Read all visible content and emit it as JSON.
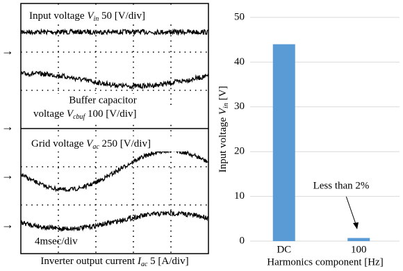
{
  "oscilloscope": {
    "input_voltage": {
      "pre": "Input voltage ",
      "var": "V",
      "sub": "in",
      "post": " 50 [V/div]"
    },
    "buffer_line1": "Buffer capacitor",
    "buffer_voltage": {
      "pre": "voltage ",
      "var": "V",
      "sub": "cbuf",
      "post": " 100 [V/div]"
    },
    "grid_voltage": {
      "pre": "Grid voltage ",
      "var": "V",
      "sub": "ac",
      "post": " 250 [V/div]"
    },
    "time_div": "4msec/div",
    "output_current": {
      "pre": "Inverter output current ",
      "var": "I",
      "sub": "ac",
      "post": " 5 [A/div]"
    }
  },
  "chart_data": {
    "type": "bar",
    "categories": [
      "DC",
      "100"
    ],
    "values": [
      44,
      0.7
    ],
    "color": "#5b9bd5",
    "xlabel": "Harmonics component [Hz]",
    "ylabel": {
      "pre": "Input voltage ",
      "var": "V",
      "sub": "in",
      "post": " [V]"
    },
    "annotation": "Less than 2%",
    "ylim": [
      0,
      50
    ],
    "yticks": [
      0,
      10,
      20,
      30,
      40,
      50
    ],
    "grid": true
  }
}
